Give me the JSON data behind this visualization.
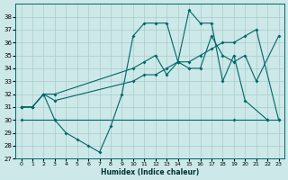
{
  "xlabel": "Humidex (Indice chaleur)",
  "bg_color": "#cce8e8",
  "grid_color": "#aacccc",
  "line_color": "#006666",
  "xlim": [
    -0.5,
    23.5
  ],
  "ylim": [
    27,
    39
  ],
  "yticks": [
    27,
    28,
    29,
    30,
    31,
    32,
    33,
    34,
    35,
    36,
    37,
    38
  ],
  "xticks": [
    0,
    1,
    2,
    3,
    4,
    5,
    6,
    7,
    8,
    9,
    10,
    11,
    12,
    13,
    14,
    15,
    16,
    17,
    18,
    19,
    20,
    21,
    22,
    23
  ],
  "curve1_x": [
    0,
    1,
    2,
    3,
    4,
    5,
    6,
    7,
    8,
    9,
    10,
    11,
    12,
    13,
    14,
    15,
    16,
    17,
    18,
    19,
    20,
    22
  ],
  "curve1_y": [
    31,
    31,
    32,
    30,
    29,
    28.5,
    28,
    27.5,
    29.5,
    32,
    36.5,
    37.5,
    37.5,
    37.5,
    34.5,
    38.5,
    37.5,
    37.5,
    33,
    35,
    31.5,
    30
  ],
  "curve2_x": [
    0,
    1,
    2,
    3,
    10,
    11,
    12,
    13,
    14,
    15,
    16,
    17,
    18,
    19,
    20,
    21,
    23
  ],
  "curve2_y": [
    31,
    31,
    32,
    31.5,
    33,
    33.5,
    33.5,
    34,
    34.5,
    34.5,
    35,
    35.5,
    36,
    36,
    36.5,
    37,
    30
  ],
  "curve3_x": [
    0,
    1,
    2,
    3,
    10,
    11,
    12,
    13,
    14,
    15,
    16,
    17,
    18,
    19,
    20,
    21,
    23
  ],
  "curve3_y": [
    31,
    31,
    32,
    32,
    34,
    34.5,
    35,
    33.5,
    34.5,
    34,
    34,
    36.5,
    35,
    34.5,
    35,
    33,
    36.5
  ],
  "curve4_x": [
    0,
    3,
    19,
    22,
    23
  ],
  "curve4_y": [
    30,
    30,
    30,
    30,
    30
  ]
}
